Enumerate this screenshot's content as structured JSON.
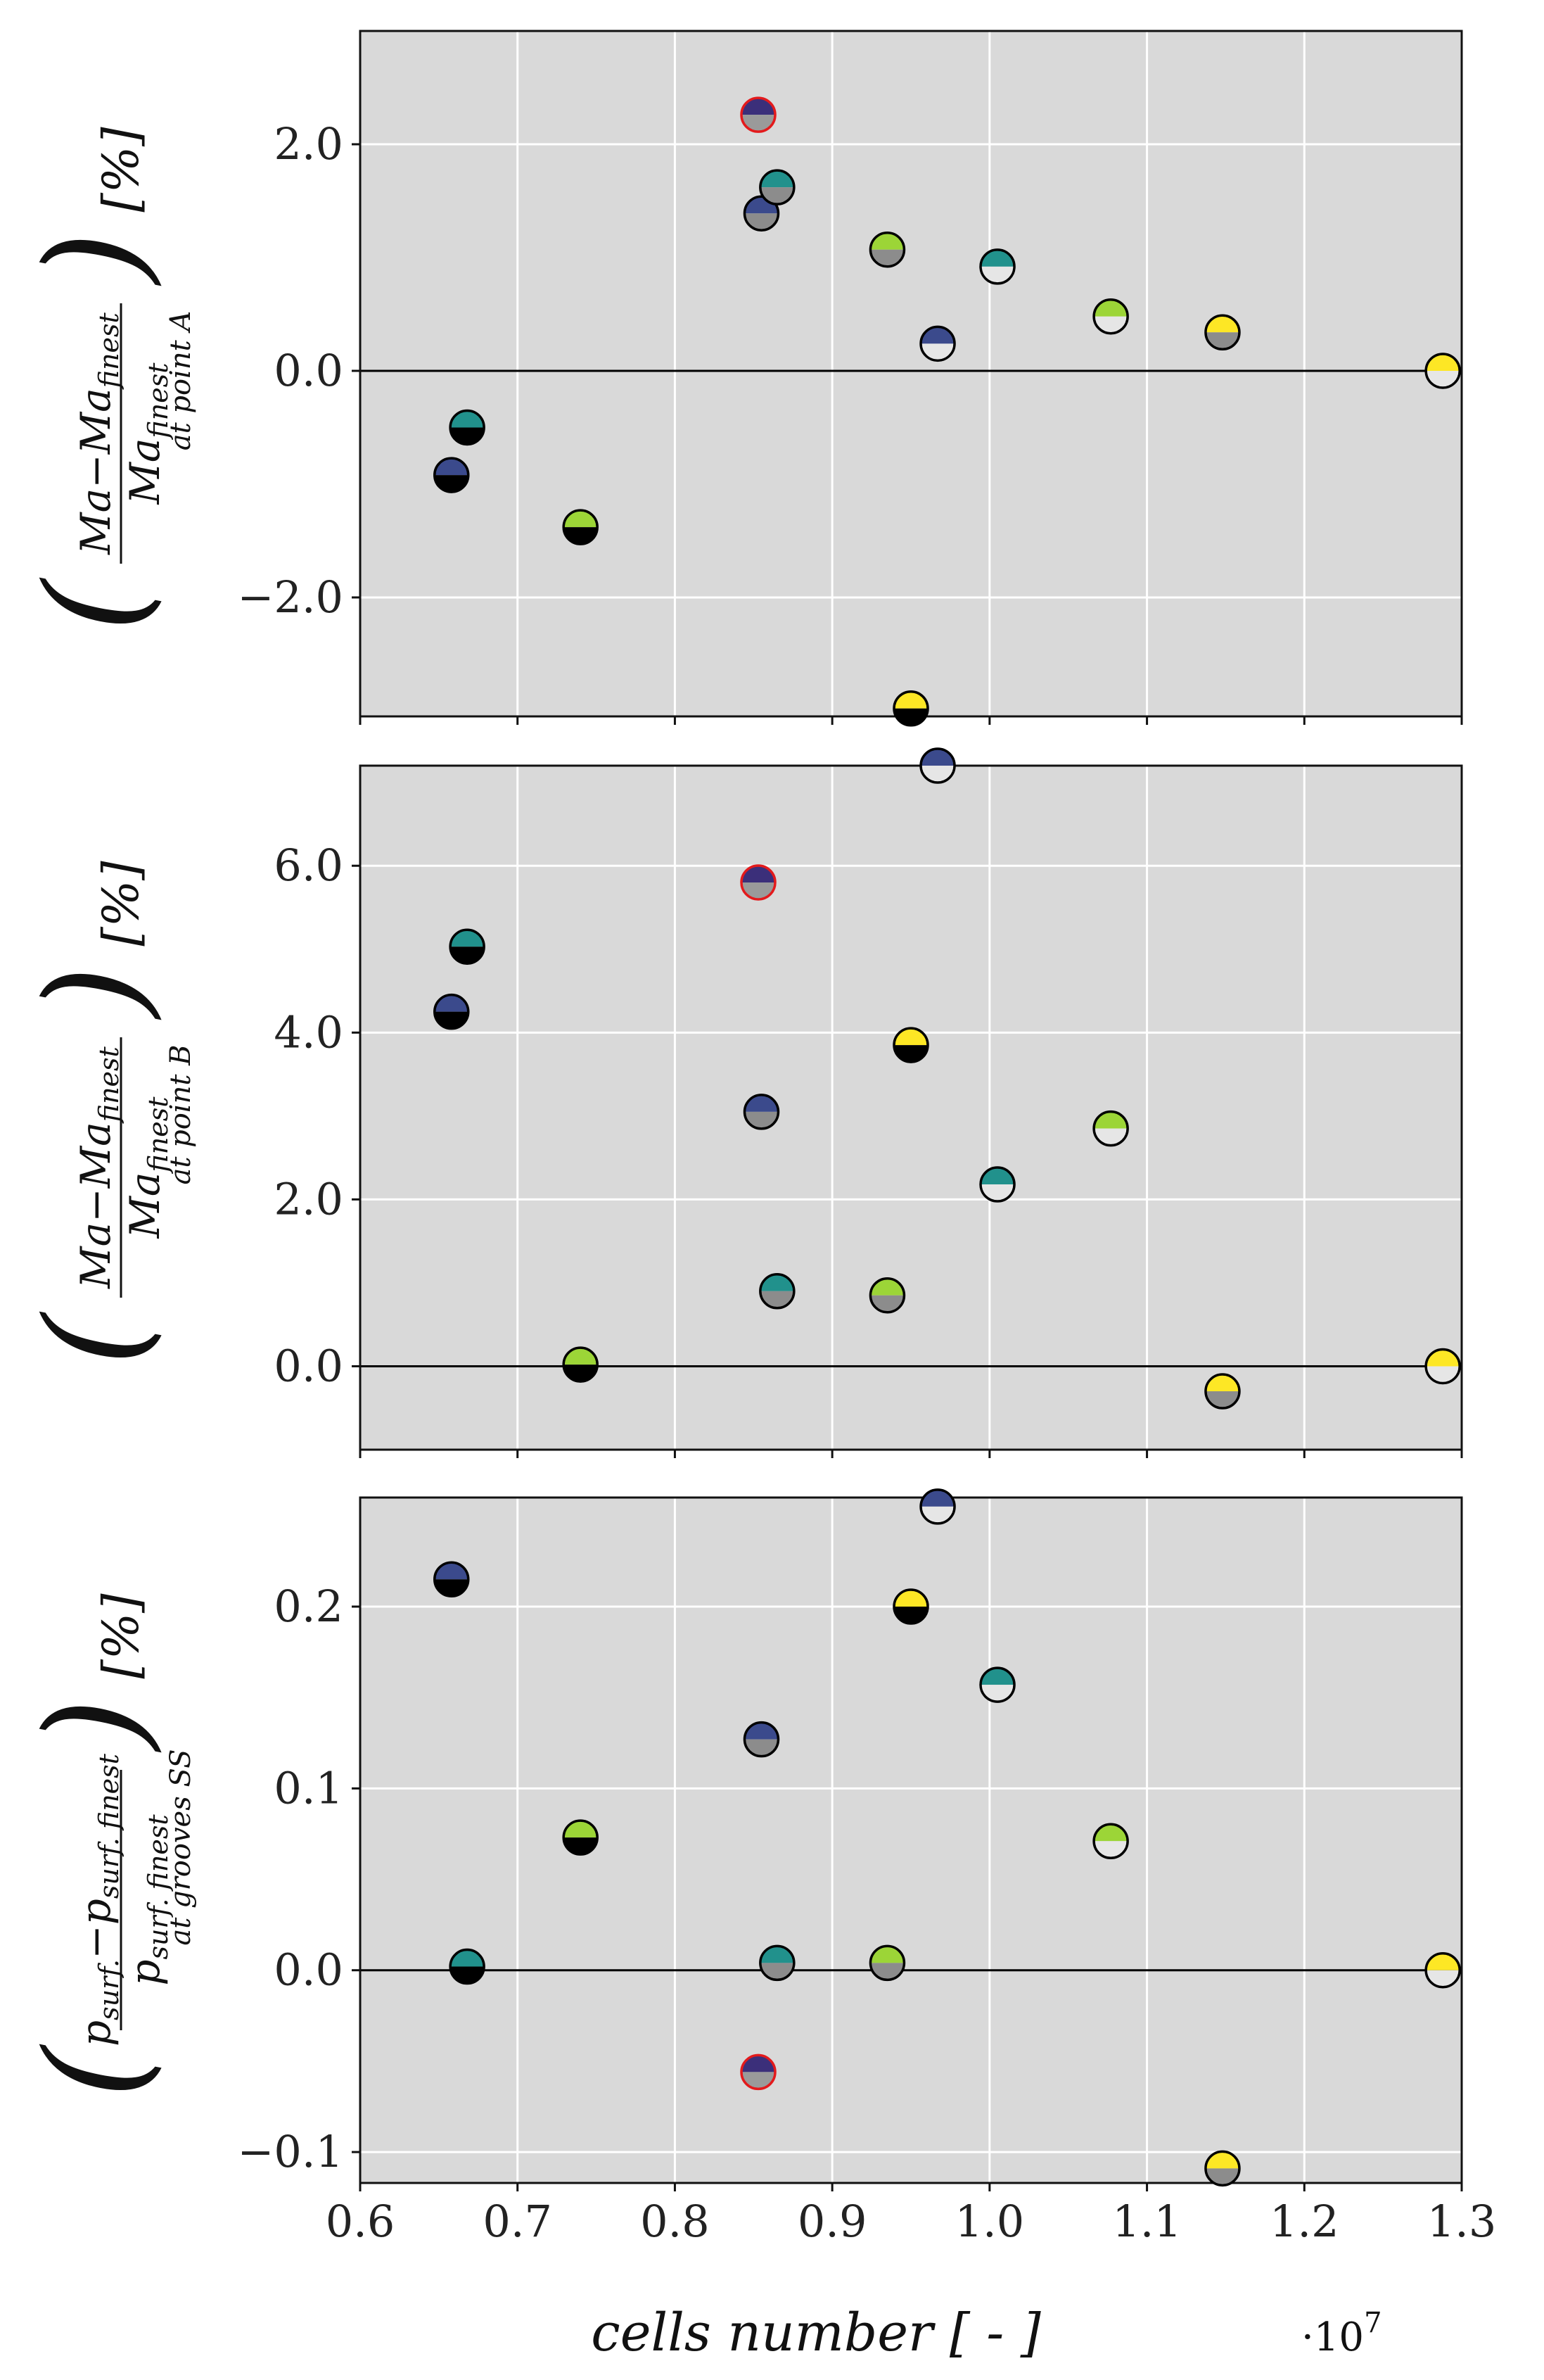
{
  "chart_data": [
    {
      "type": "scatter",
      "panel": "A",
      "ylabel": {
        "numerator": "Ma−Ma",
        "numerator_sub": "finest",
        "denominator": "Ma",
        "denominator_sub": "finest",
        "location": "at point A",
        "unit": "[%]"
      },
      "ylim": [
        -3.05,
        3.0
      ],
      "yticks": [
        2.0,
        0.0,
        -2.0
      ],
      "ytick_labels": [
        "2.0",
        "0.0",
        "−2.0"
      ],
      "points": [
        {
          "x": 0.658,
          "y": -0.92,
          "top": "#3b4a8c",
          "bottom": "#000000",
          "edge": "#000000"
        },
        {
          "x": 0.668,
          "y": -0.5,
          "top": "#21918c",
          "bottom": "#000000",
          "edge": "#000000"
        },
        {
          "x": 0.74,
          "y": -1.38,
          "top": "#9cd537",
          "bottom": "#000000",
          "edge": "#000000"
        },
        {
          "x": 0.853,
          "y": 2.26,
          "top": "#3b2f7a",
          "bottom": "#9a9a9a",
          "edge": "#e31a1c"
        },
        {
          "x": 0.855,
          "y": 1.39,
          "top": "#3b4a8c",
          "bottom": "#8c8c8c",
          "edge": "#000000"
        },
        {
          "x": 0.865,
          "y": 1.62,
          "top": "#21918c",
          "bottom": "#8c8c8c",
          "edge": "#000000"
        },
        {
          "x": 0.935,
          "y": 1.07,
          "top": "#9cd537",
          "bottom": "#8c8c8c",
          "edge": "#000000"
        },
        {
          "x": 0.95,
          "y": -2.98,
          "top": "#fde725",
          "bottom": "#000000",
          "edge": "#000000"
        },
        {
          "x": 0.967,
          "y": 0.24,
          "top": "#3b4a8c",
          "bottom": "#e6e6e6",
          "edge": "#000000"
        },
        {
          "x": 1.005,
          "y": 0.92,
          "top": "#21918c",
          "bottom": "#e6e6e6",
          "edge": "#000000"
        },
        {
          "x": 1.077,
          "y": 0.48,
          "top": "#9cd537",
          "bottom": "#e6e6e6",
          "edge": "#000000"
        },
        {
          "x": 1.148,
          "y": 0.34,
          "top": "#fde725",
          "bottom": "#8c8c8c",
          "edge": "#000000"
        },
        {
          "x": 1.288,
          "y": 0.0,
          "top": "#fde725",
          "bottom": "#e6e6e6",
          "edge": "#000000"
        }
      ]
    },
    {
      "type": "scatter",
      "panel": "B",
      "ylabel": {
        "numerator": "Ma−Ma",
        "numerator_sub": "finest",
        "denominator": "Ma",
        "denominator_sub": "finest",
        "location": "at point B",
        "unit": "[%]"
      },
      "ylim": [
        -1.0,
        7.2
      ],
      "yticks": [
        6.0,
        4.0,
        2.0,
        0.0
      ],
      "ytick_labels": [
        "6.0",
        "4.0",
        "2.0",
        "0.0"
      ],
      "points": [
        {
          "x": 0.658,
          "y": 4.25,
          "top": "#3b4a8c",
          "bottom": "#000000",
          "edge": "#000000"
        },
        {
          "x": 0.668,
          "y": 5.03,
          "top": "#21918c",
          "bottom": "#000000",
          "edge": "#000000"
        },
        {
          "x": 0.74,
          "y": 0.02,
          "top": "#9cd537",
          "bottom": "#000000",
          "edge": "#000000"
        },
        {
          "x": 0.853,
          "y": 5.8,
          "top": "#3b2f7a",
          "bottom": "#9a9a9a",
          "edge": "#e31a1c"
        },
        {
          "x": 0.855,
          "y": 3.05,
          "top": "#3b4a8c",
          "bottom": "#8c8c8c",
          "edge": "#000000"
        },
        {
          "x": 0.865,
          "y": 0.9,
          "top": "#21918c",
          "bottom": "#8c8c8c",
          "edge": "#000000"
        },
        {
          "x": 0.935,
          "y": 0.85,
          "top": "#9cd537",
          "bottom": "#8c8c8c",
          "edge": "#000000"
        },
        {
          "x": 0.95,
          "y": 3.85,
          "top": "#fde725",
          "bottom": "#000000",
          "edge": "#000000"
        },
        {
          "x": 0.967,
          "y": 7.2,
          "top": "#3b4a8c",
          "bottom": "#e6e6e6",
          "edge": "#000000"
        },
        {
          "x": 1.005,
          "y": 2.18,
          "top": "#21918c",
          "bottom": "#e6e6e6",
          "edge": "#000000"
        },
        {
          "x": 1.077,
          "y": 2.85,
          "top": "#9cd537",
          "bottom": "#e6e6e6",
          "edge": "#000000"
        },
        {
          "x": 1.148,
          "y": -0.3,
          "top": "#fde725",
          "bottom": "#8c8c8c",
          "edge": "#000000"
        },
        {
          "x": 1.288,
          "y": 0.0,
          "top": "#fde725",
          "bottom": "#e6e6e6",
          "edge": "#000000"
        }
      ]
    },
    {
      "type": "scatter",
      "panel": "grooves SS",
      "ylabel": {
        "numerator": "p",
        "numerator_sub": "surf.",
        "numerator_mid": "−p",
        "numerator_sub2": "surf. finest",
        "denominator": "p",
        "denominator_sub": "surf. finest",
        "location": "at grooves SS",
        "unit": "[%]"
      },
      "ylim": [
        -0.117,
        0.26
      ],
      "yticks": [
        0.2,
        0.1,
        0.0,
        -0.1
      ],
      "ytick_labels": [
        "0.2",
        "0.1",
        "0.0",
        "−0.1"
      ],
      "points": [
        {
          "x": 0.658,
          "y": 0.215,
          "top": "#3b4a8c",
          "bottom": "#000000",
          "edge": "#000000"
        },
        {
          "x": 0.668,
          "y": 0.002,
          "top": "#21918c",
          "bottom": "#000000",
          "edge": "#000000"
        },
        {
          "x": 0.74,
          "y": 0.073,
          "top": "#9cd537",
          "bottom": "#000000",
          "edge": "#000000"
        },
        {
          "x": 0.853,
          "y": -0.056,
          "top": "#3b2f7a",
          "bottom": "#9a9a9a",
          "edge": "#e31a1c"
        },
        {
          "x": 0.855,
          "y": 0.127,
          "top": "#3b4a8c",
          "bottom": "#8c8c8c",
          "edge": "#000000"
        },
        {
          "x": 0.865,
          "y": 0.004,
          "top": "#21918c",
          "bottom": "#8c8c8c",
          "edge": "#000000"
        },
        {
          "x": 0.935,
          "y": 0.004,
          "top": "#9cd537",
          "bottom": "#8c8c8c",
          "edge": "#000000"
        },
        {
          "x": 0.95,
          "y": 0.2,
          "top": "#fde725",
          "bottom": "#000000",
          "edge": "#000000"
        },
        {
          "x": 0.967,
          "y": 0.255,
          "top": "#3b4a8c",
          "bottom": "#e6e6e6",
          "edge": "#000000"
        },
        {
          "x": 1.005,
          "y": 0.157,
          "top": "#21918c",
          "bottom": "#e6e6e6",
          "edge": "#000000"
        },
        {
          "x": 1.077,
          "y": 0.071,
          "top": "#9cd537",
          "bottom": "#e6e6e6",
          "edge": "#000000"
        },
        {
          "x": 1.148,
          "y": -0.109,
          "top": "#fde725",
          "bottom": "#8c8c8c",
          "edge": "#000000"
        },
        {
          "x": 1.288,
          "y": 0.0,
          "top": "#fde725",
          "bottom": "#e6e6e6",
          "edge": "#000000"
        }
      ]
    }
  ],
  "xaxis": {
    "label": "cells number [ - ]",
    "scale_label": "·10",
    "scale_exponent": "7",
    "xlim": [
      0.6,
      1.3
    ],
    "xticks": [
      0.6,
      0.7,
      0.8,
      0.9,
      1.0,
      1.1,
      1.2,
      1.3
    ],
    "xtick_labels": [
      "0.6",
      "0.7",
      "0.8",
      "0.9",
      "1.0",
      "1.1",
      "1.2",
      "1.3"
    ]
  },
  "colors": {
    "plot_background": "#d9d9d9",
    "grid": "#ffffff",
    "highlight_edge": "#e31a1c"
  }
}
